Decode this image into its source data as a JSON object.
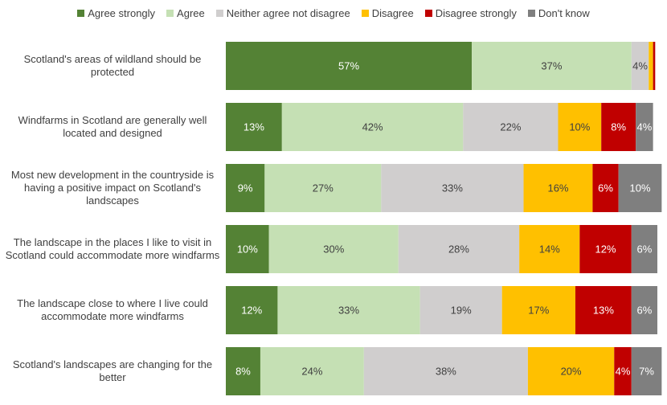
{
  "chart_data": {
    "type": "stacked-bar-horizontal",
    "categories": [
      "Scotland's areas of wildland should be protected",
      "Windfarms in Scotland are generally well located and designed",
      "Most new development in the countryside is having a positive impact on Scotland's landscapes",
      "The landscape in the places I like to visit in Scotland could accommodate more windfarms",
      "The landscape close to where I live could accommodate more windfarms",
      "Scotland's landscapes are changing for the better"
    ],
    "xlim": [
      0,
      100
    ],
    "series": [
      {
        "name": "Agree strongly",
        "color": "#548235",
        "label_color": "#ffffff",
        "values": [
          57,
          13,
          9,
          10,
          12,
          8
        ],
        "value_labels": [
          "57%",
          "13%",
          "9%",
          "10%",
          "12%",
          "8%"
        ]
      },
      {
        "name": "Agree",
        "color": "#c5e0b4",
        "label_color": "#404040",
        "values": [
          37,
          42,
          27,
          30,
          33,
          24
        ],
        "value_labels": [
          "37%",
          "42%",
          "27%",
          "30%",
          "33%",
          "24%"
        ]
      },
      {
        "name": "Neither agree not disagree",
        "color": "#d0cece",
        "label_color": "#404040",
        "values": [
          4,
          22,
          33,
          28,
          19,
          38
        ],
        "value_labels": [
          "4%",
          "22%",
          "33%",
          "28%",
          "19%",
          "38%"
        ]
      },
      {
        "name": "Disagree",
        "color": "#ffc000",
        "label_color": "#404040",
        "values": [
          1,
          10,
          16,
          14,
          17,
          20
        ],
        "value_labels": [
          null,
          "10%",
          "16%",
          "14%",
          "17%",
          "20%"
        ]
      },
      {
        "name": "Disagree strongly",
        "color": "#c00000",
        "label_color": "#ffffff",
        "values": [
          0.5,
          8,
          6,
          12,
          13,
          4
        ],
        "value_labels": [
          null,
          "8%",
          "6%",
          "12%",
          "13%",
          "4%"
        ]
      },
      {
        "name": "Don't know",
        "color": "#7f7f7f",
        "label_color": "#ffffff",
        "values": [
          0,
          4,
          10,
          6,
          6,
          7
        ],
        "value_labels": [
          null,
          "4%",
          "10%",
          "6%",
          "6%",
          "7%"
        ]
      }
    ]
  }
}
